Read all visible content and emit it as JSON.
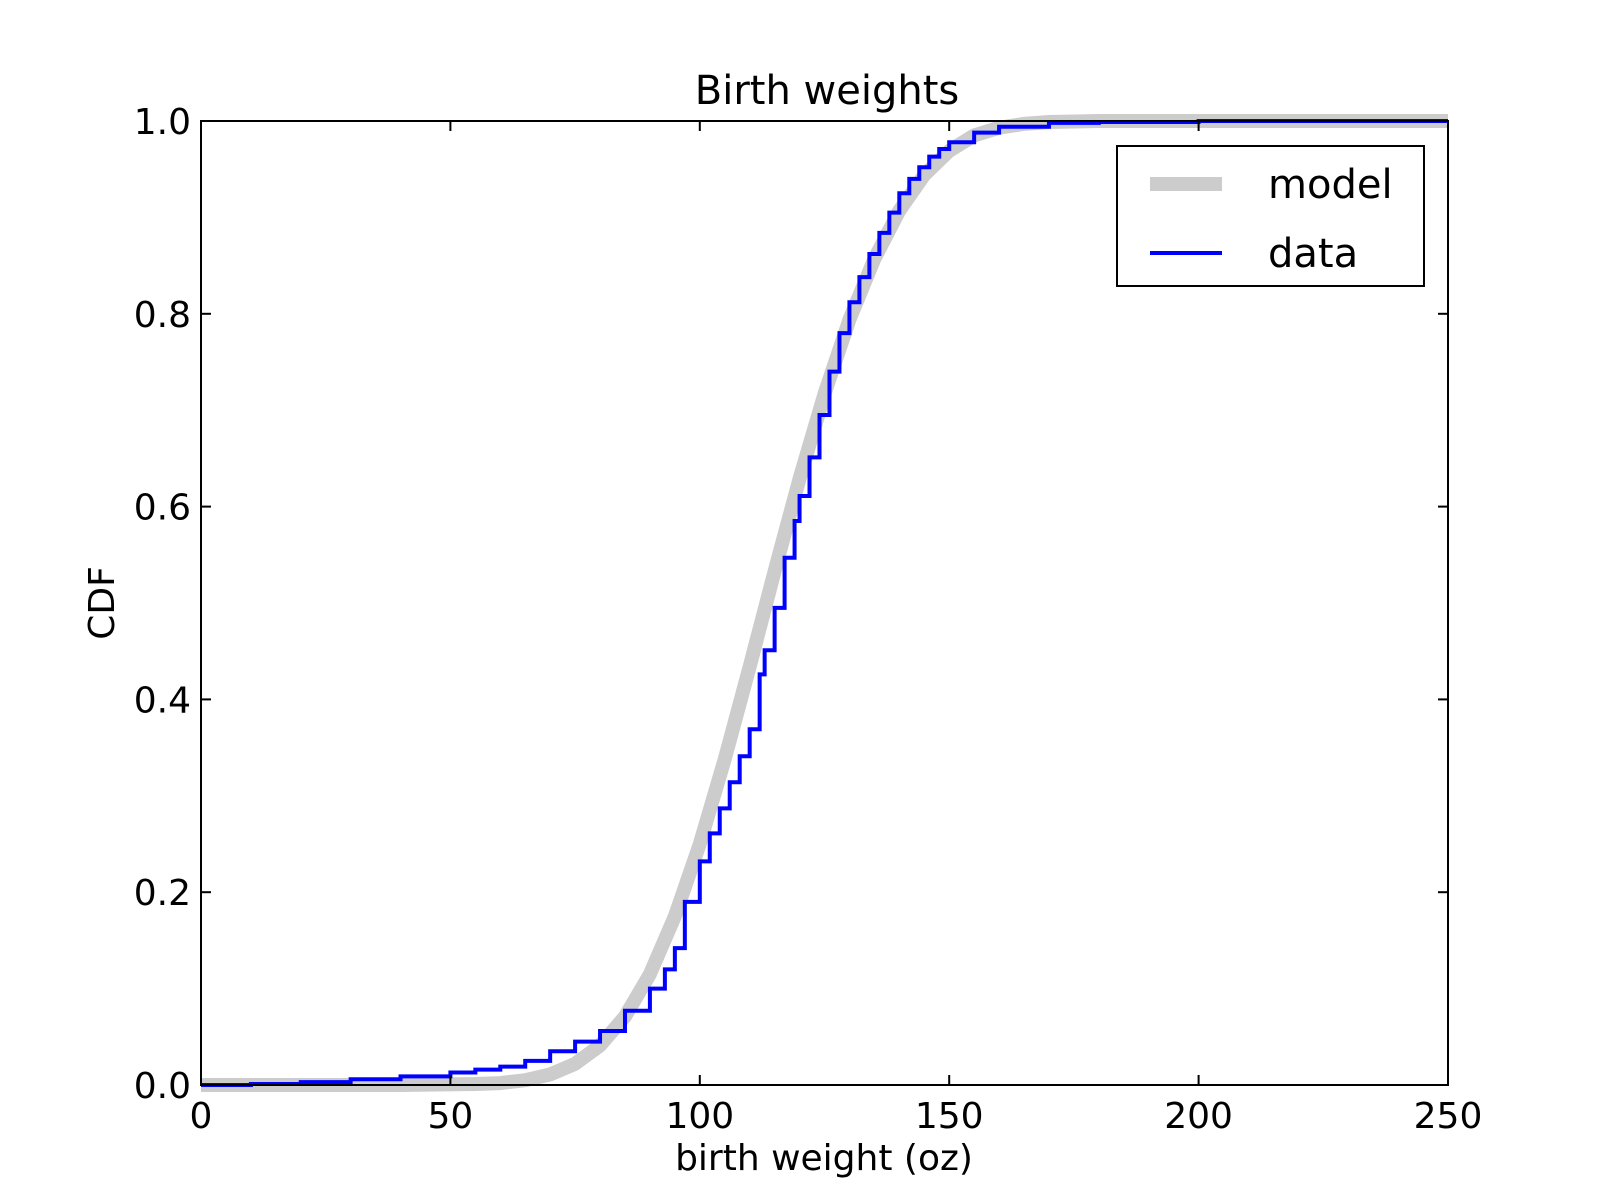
{
  "chart_data": {
    "type": "line",
    "title": "Birth weights",
    "xlabel": "birth weight (oz)",
    "ylabel": "CDF",
    "xlim": [
      0,
      250
    ],
    "ylim": [
      0.0,
      1.0
    ],
    "xticks": [
      0,
      50,
      100,
      150,
      200,
      250
    ],
    "xtick_labels": [
      "0",
      "50",
      "100",
      "150",
      "200",
      "250"
    ],
    "yticks": [
      0.0,
      0.2,
      0.4,
      0.6,
      0.8,
      1.0
    ],
    "ytick_labels": [
      "0.0",
      "0.2",
      "0.4",
      "0.6",
      "0.8",
      "1.0"
    ],
    "grid": false,
    "legend": {
      "position": "top-right",
      "entries": [
        "model",
        "data"
      ]
    },
    "series": [
      {
        "name": "model",
        "color": "#cccccc",
        "style": "thick-smooth",
        "x": [
          0,
          40,
          55,
          60,
          65,
          70,
          75,
          80,
          85,
          90,
          95,
          100,
          105,
          110,
          115,
          120,
          125,
          130,
          135,
          140,
          145,
          150,
          155,
          160,
          165,
          170,
          180,
          200,
          250
        ],
        "y": [
          0.0,
          0.0,
          0.001,
          0.002,
          0.005,
          0.011,
          0.022,
          0.041,
          0.071,
          0.115,
          0.175,
          0.25,
          0.338,
          0.434,
          0.533,
          0.629,
          0.717,
          0.794,
          0.857,
          0.907,
          0.944,
          0.969,
          0.985,
          0.993,
          0.997,
          0.999,
          1.0,
          1.0,
          1.0
        ]
      },
      {
        "name": "data",
        "color": "#0000ff",
        "style": "step",
        "x": [
          0,
          10,
          20,
          30,
          40,
          50,
          55,
          60,
          65,
          70,
          75,
          80,
          85,
          90,
          93,
          95,
          97,
          100,
          102,
          104,
          106,
          108,
          110,
          112,
          113,
          115,
          117,
          119,
          120,
          122,
          124,
          126,
          128,
          130,
          132,
          134,
          136,
          138,
          140,
          142,
          144,
          146,
          148,
          150,
          155,
          160,
          170,
          180,
          200,
          250
        ],
        "y": [
          0.0,
          0.001,
          0.003,
          0.006,
          0.009,
          0.013,
          0.016,
          0.019,
          0.025,
          0.035,
          0.045,
          0.056,
          0.077,
          0.1,
          0.12,
          0.142,
          0.19,
          0.232,
          0.261,
          0.287,
          0.314,
          0.341,
          0.369,
          0.426,
          0.451,
          0.495,
          0.547,
          0.585,
          0.611,
          0.651,
          0.695,
          0.74,
          0.78,
          0.812,
          0.838,
          0.862,
          0.884,
          0.905,
          0.925,
          0.94,
          0.952,
          0.963,
          0.971,
          0.978,
          0.988,
          0.994,
          0.998,
          0.999,
          1.0,
          1.0
        ]
      }
    ]
  }
}
